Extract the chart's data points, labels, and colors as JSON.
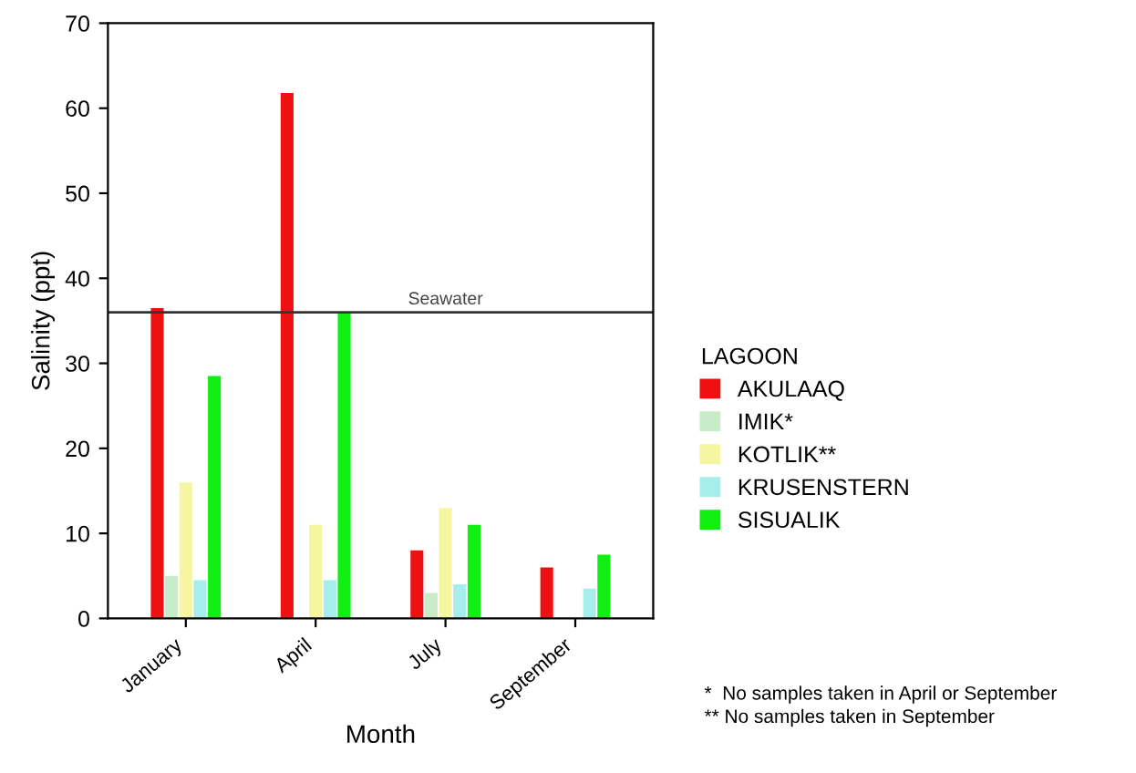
{
  "chart_data": {
    "type": "bar",
    "xlabel": "Month",
    "ylabel": "Salinity (ppt)",
    "legend_title": "LAGOON",
    "categories": [
      "January",
      "April",
      "July",
      "September"
    ],
    "series": [
      {
        "name": "AKULAAQ",
        "color": "#ee1111",
        "values": [
          36.5,
          61.8,
          8,
          6
        ]
      },
      {
        "name": "IMIK*",
        "color": "#c8ecc8",
        "values": [
          5,
          null,
          3,
          null
        ]
      },
      {
        "name": "KOTLIK**",
        "color": "#f6f6a0",
        "values": [
          16,
          11,
          13,
          null
        ]
      },
      {
        "name": "KRUSENSTERN",
        "color": "#a6eeee",
        "values": [
          4.5,
          4.5,
          4,
          3.5
        ]
      },
      {
        "name": "SISUALIK",
        "color": "#11ee11",
        "values": [
          28.5,
          36,
          11,
          7.5
        ]
      }
    ],
    "ylim": [
      0,
      70
    ],
    "yticks": [
      0,
      10,
      20,
      30,
      40,
      50,
      60,
      70
    ],
    "grid": false,
    "legend": "right",
    "ref_lines": [
      {
        "axis": "y",
        "value": 36,
        "label": "Seawater",
        "color": "#333333"
      }
    ],
    "annotations": [
      "*  No samples taken in April or September",
      "** No samples taken in September"
    ]
  }
}
